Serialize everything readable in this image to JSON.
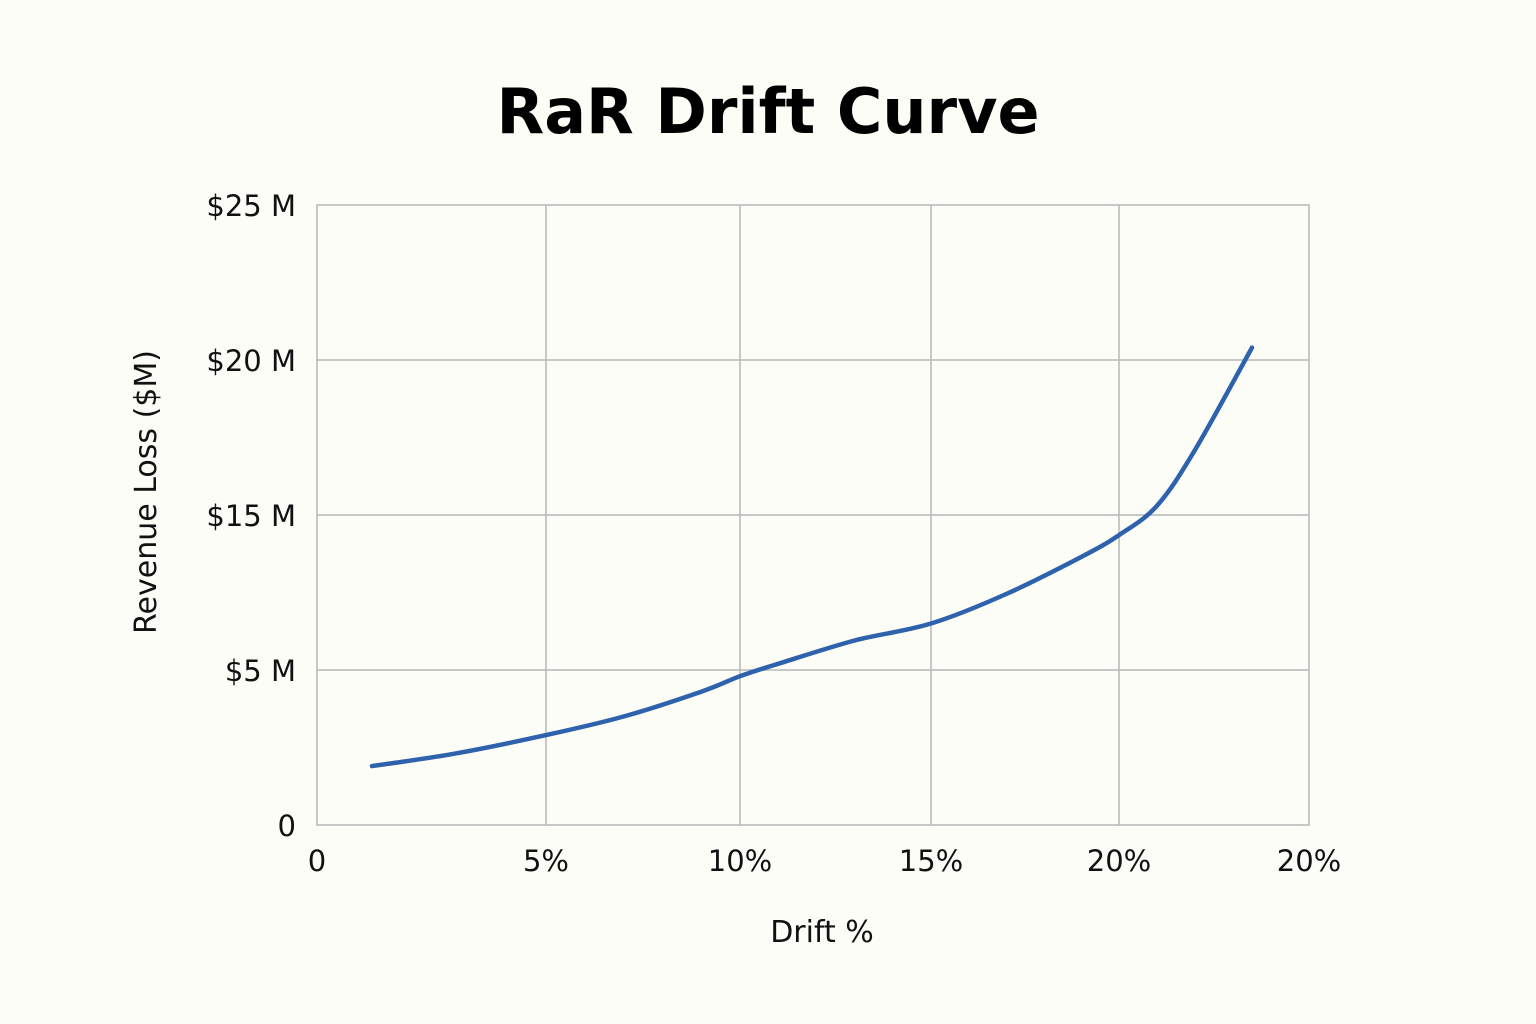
{
  "chart_data": {
    "type": "line",
    "title": "RaR Drift Curve",
    "xlabel": "Drift %",
    "ylabel": "Revenue Loss ($M)",
    "x_tick_labels": [
      "0",
      "5%",
      "10%",
      "15%",
      "20%",
      "20%"
    ],
    "y_tick_labels": [
      "0",
      "$5 M",
      "$15 M",
      "$20 M",
      "$25 M"
    ],
    "grid": true,
    "legend": "none",
    "series": [
      {
        "color": "#2f62ad",
        "x": [
          1.2,
          3,
          5,
          7,
          9,
          10,
          11,
          13,
          15,
          17,
          19,
          20,
          21,
          22,
          23.5
        ],
        "y": [
          1.9,
          2.3,
          2.9,
          3.5,
          4.3,
          4.8,
          5.4,
          6.9,
          8.0,
          9.9,
          12.3,
          13.7,
          15.3,
          17.1,
          20.4
        ]
      }
    ]
  }
}
